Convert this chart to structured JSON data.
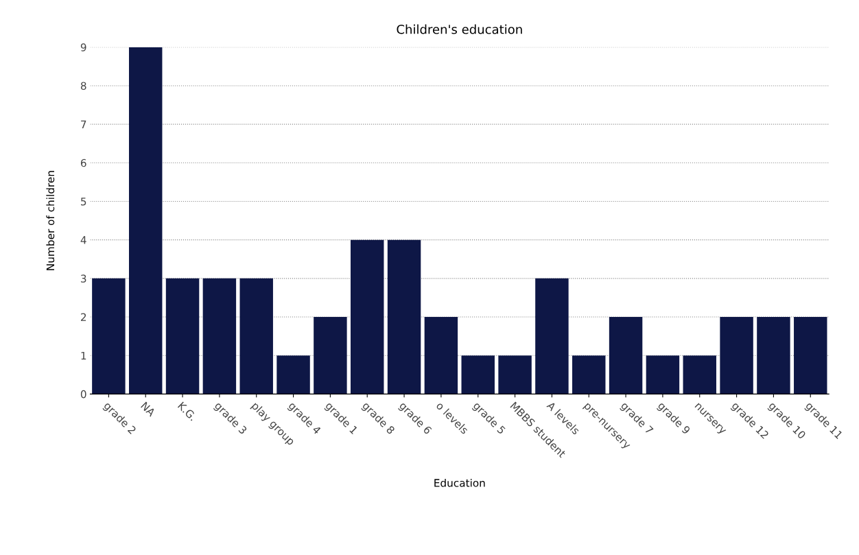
{
  "chart_data": {
    "type": "bar",
    "title": "Children's education",
    "xlabel": "Education",
    "ylabel": "Number of children",
    "categories": [
      "grade 2",
      "NA",
      "K.G.",
      "grade 3",
      "play group",
      "grade 4",
      "grade 1",
      "grade 8",
      "grade 6",
      "o levels",
      "grade 5",
      "MBBS student",
      "A levels",
      "pre-nursery",
      "grade 7",
      "grade 9",
      "nursery",
      "grade 12",
      "grade 10",
      "grade 11"
    ],
    "values": [
      3,
      9,
      3,
      3,
      3,
      1,
      2,
      4,
      4,
      2,
      1,
      1,
      3,
      1,
      2,
      1,
      1,
      2,
      2,
      2
    ],
    "color": "#0e1746",
    "ylim": [
      0,
      9
    ],
    "yticks": [
      0,
      1,
      2,
      3,
      4,
      5,
      6,
      7,
      8,
      9
    ],
    "grid": "y"
  }
}
